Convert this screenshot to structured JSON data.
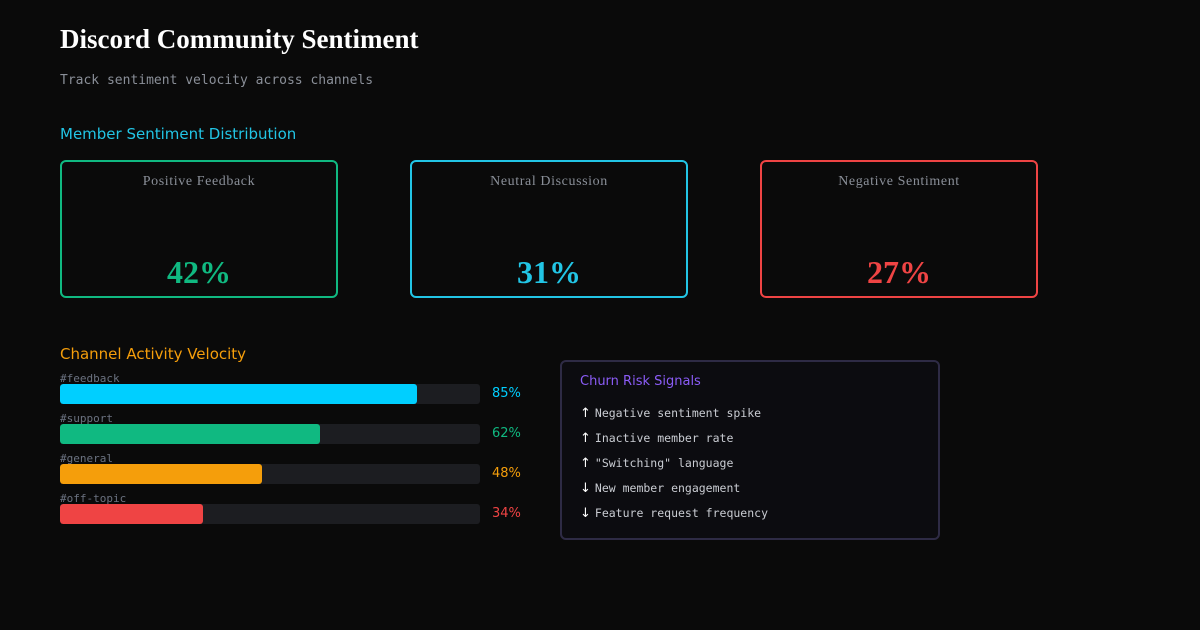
{
  "header": {
    "title": "Discord Community Sentiment",
    "subtitle": "Track sentiment velocity across channels"
  },
  "distribution": {
    "title": "Member Sentiment Distribution",
    "cards": [
      {
        "label": "Positive Feedback",
        "value": "42%",
        "color": "#10b981"
      },
      {
        "label": "Neutral Discussion",
        "value": "31%",
        "color": "#22c5e5"
      },
      {
        "label": "Negative Sentiment",
        "value": "27%",
        "color": "#ef4444"
      }
    ]
  },
  "velocity": {
    "title": "Channel Activity Velocity",
    "channels": [
      {
        "name": "#feedback",
        "percent": 85,
        "label": "85%",
        "color": "#00cfff"
      },
      {
        "name": "#support",
        "percent": 62,
        "label": "62%",
        "color": "#10b981"
      },
      {
        "name": "#general",
        "percent": 48,
        "label": "48%",
        "color": "#f59e0b"
      },
      {
        "name": "#off-topic",
        "percent": 34,
        "label": "34%",
        "color": "#ef4444"
      }
    ]
  },
  "churn": {
    "title": "Churn Risk Signals",
    "signals": [
      {
        "direction": "up",
        "arrow": "↑",
        "text": "Negative sentiment spike"
      },
      {
        "direction": "up",
        "arrow": "↑",
        "text": "Inactive member rate"
      },
      {
        "direction": "up",
        "arrow": "↑",
        "text": "\"Switching\" language"
      },
      {
        "direction": "down",
        "arrow": "↓",
        "text": "New member engagement"
      },
      {
        "direction": "down",
        "arrow": "↓",
        "text": "Feature request frequency"
      }
    ],
    "border_color": "#2e2b45",
    "title_color": "#8b5cf6"
  }
}
